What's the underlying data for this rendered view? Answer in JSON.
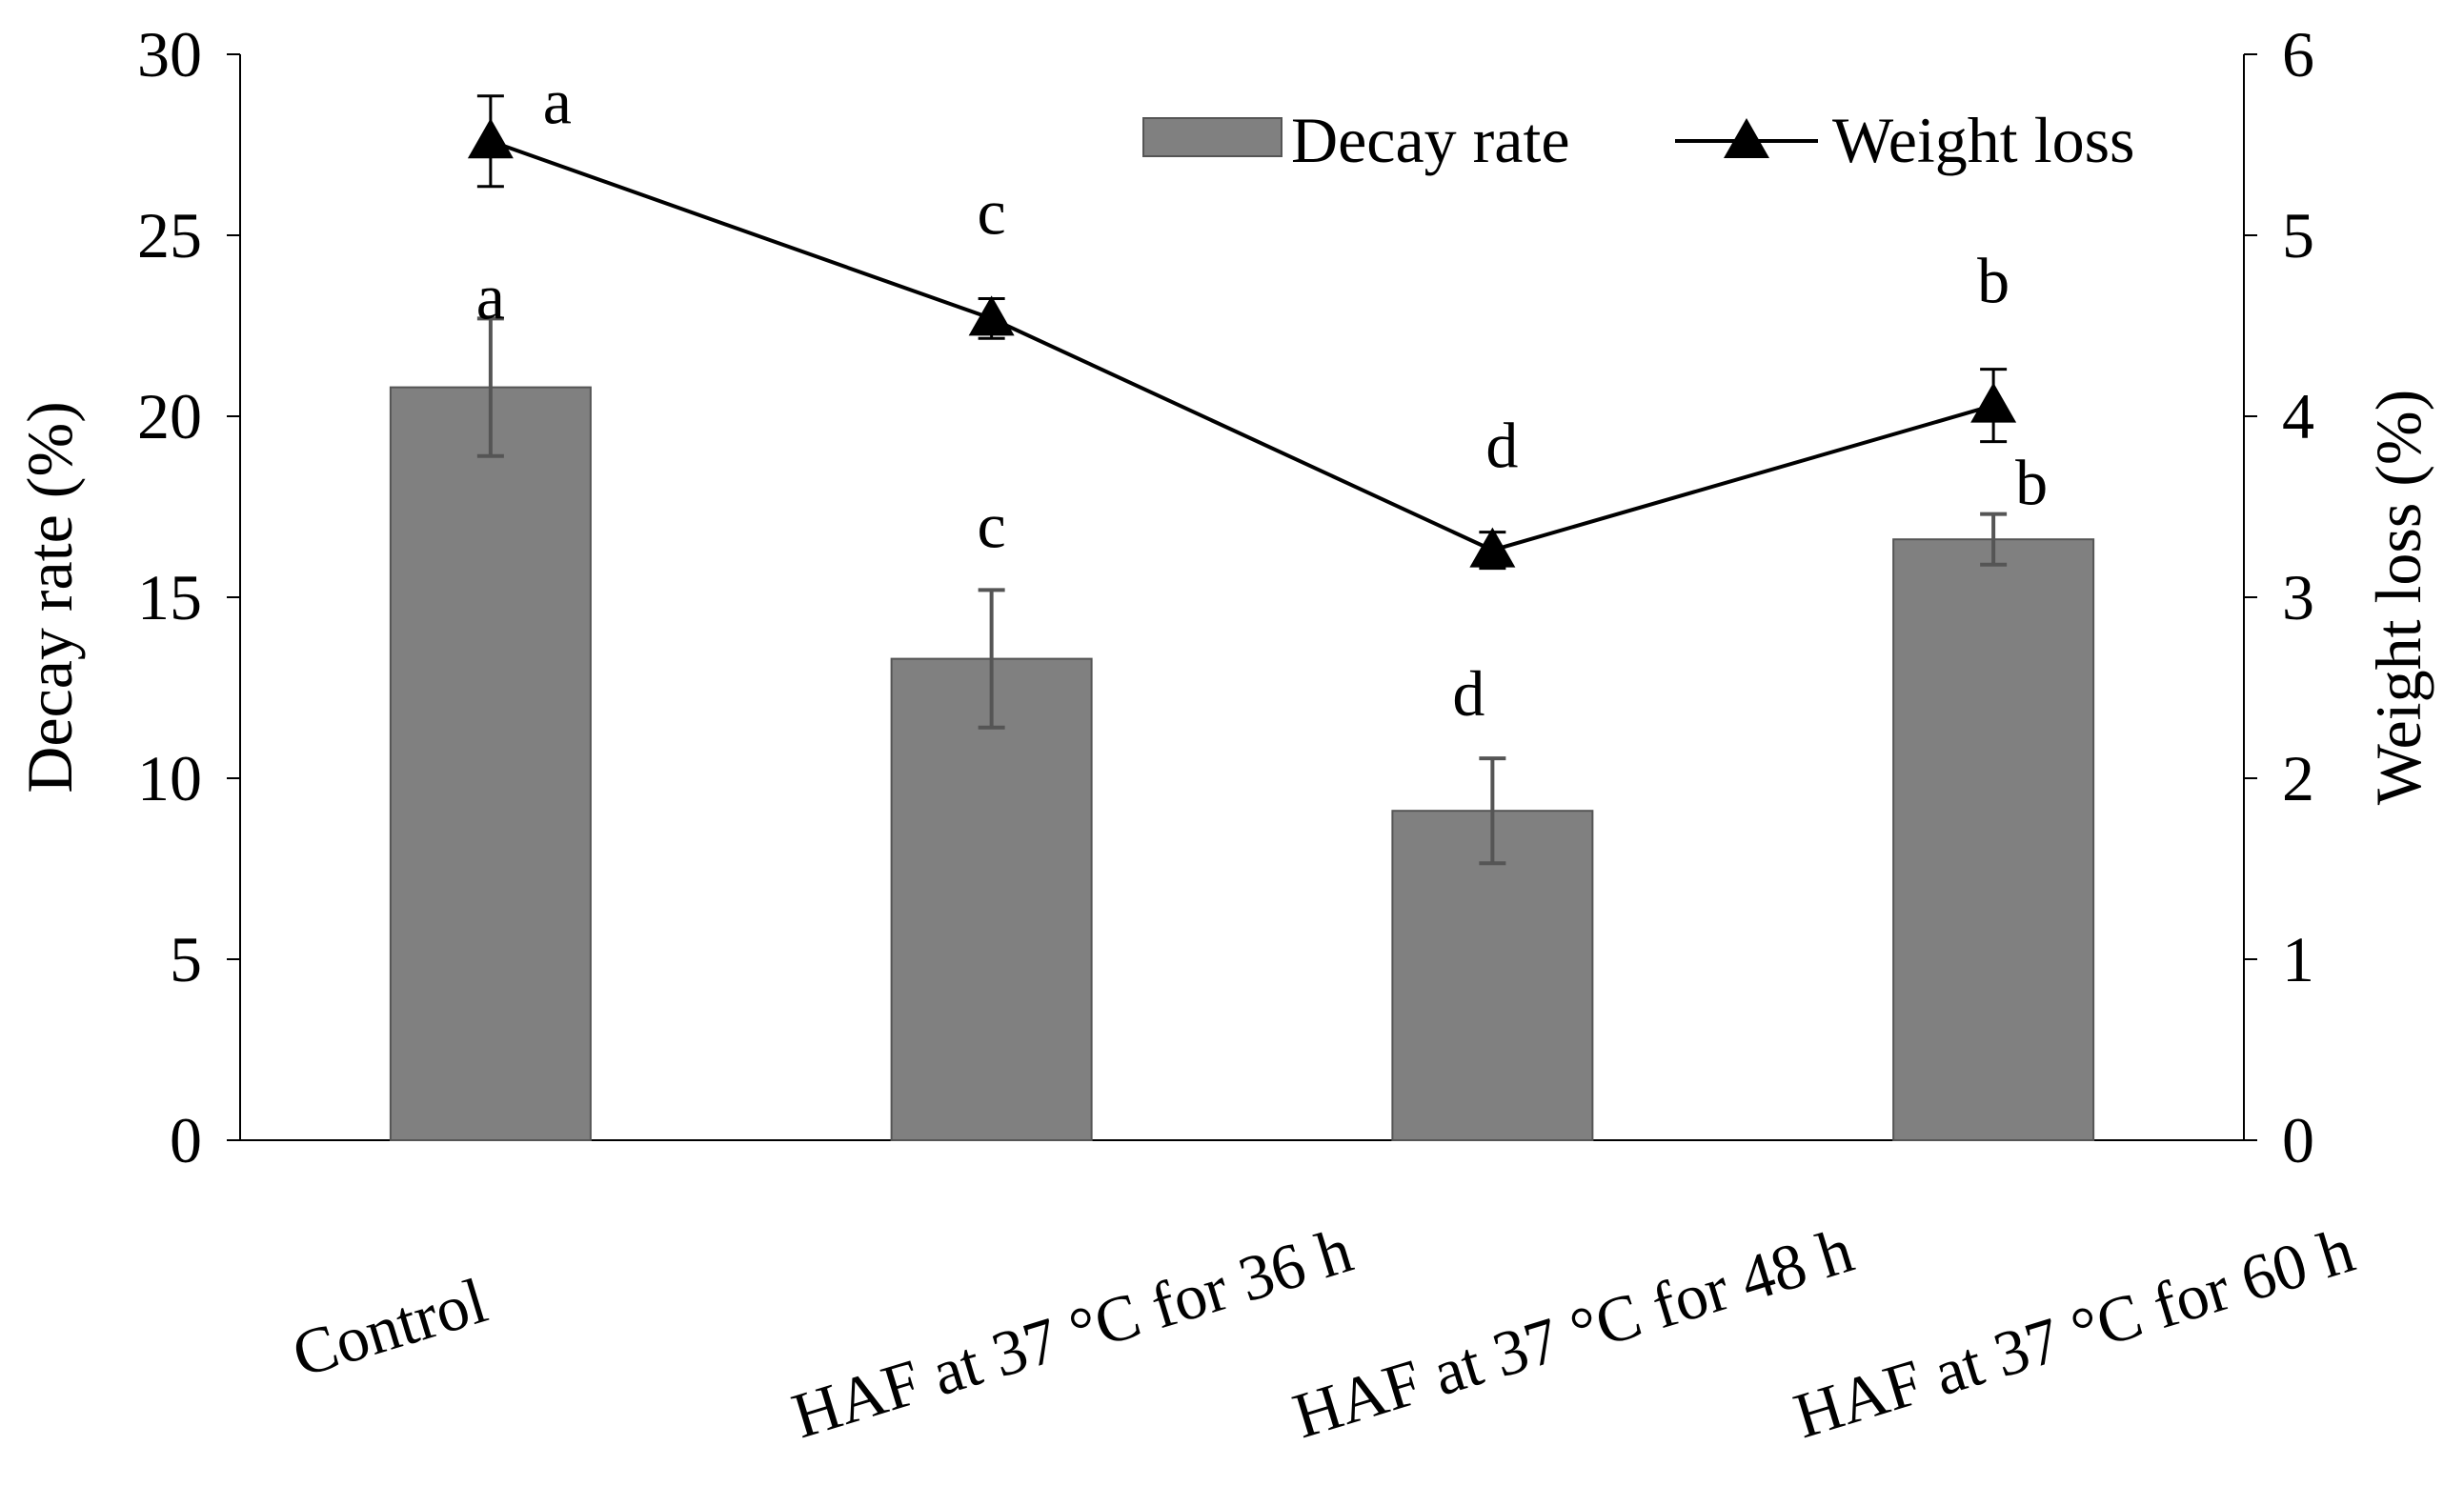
{
  "chart_data": {
    "type": "bar+line",
    "categories": [
      "Control",
      "HAF at 37 °C for 36 h",
      "HAF at 37 °C for 48 h",
      "HAF at 37 °C for 60 h"
    ],
    "series": [
      {
        "name": "Decay rate",
        "kind": "bar",
        "axis": "left",
        "values": [
          20.8,
          13.3,
          9.1,
          16.6
        ],
        "errors": [
          1.9,
          1.9,
          1.45,
          0.7
        ],
        "letters": [
          "a",
          "c",
          "d",
          "b"
        ]
      },
      {
        "name": "Weight loss",
        "kind": "line",
        "marker": "triangle",
        "axis": "right",
        "values": [
          5.52,
          4.54,
          3.26,
          4.06
        ],
        "errors": [
          0.25,
          0.11,
          0.1,
          0.2
        ],
        "letters": [
          "a",
          "c",
          "d",
          "b"
        ]
      }
    ],
    "ylabel": "Decay rate (%)",
    "y2label": "Weight loss (%)",
    "ylim": [
      0,
      30
    ],
    "y2lim": [
      0,
      6
    ],
    "yticks": [
      "0",
      "5",
      "10",
      "15",
      "20",
      "25",
      "30"
    ],
    "y2ticks": [
      "0",
      "1",
      "2",
      "3",
      "4",
      "5",
      "6"
    ],
    "legend": {
      "position": "top-right",
      "entries": [
        "Decay rate",
        "Weight loss"
      ]
    },
    "grid": false,
    "colors": {
      "bar_fill": "#808080",
      "bar_stroke": "#555555",
      "line": "#000000",
      "axis": "#000000",
      "error_bar": "#555555"
    }
  }
}
